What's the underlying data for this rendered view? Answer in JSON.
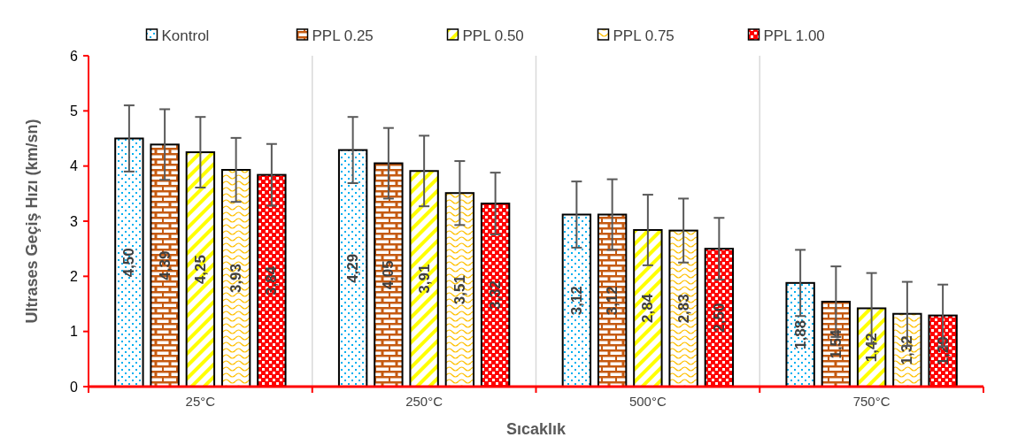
{
  "chart_data": {
    "type": "bar",
    "xlabel": "Sıcaklık",
    "ylabel": "Ultrases Geçiş Hızı (km/sn)",
    "categories": [
      "25°C",
      "250°C",
      "500°C",
      "750°C"
    ],
    "ylim": [
      0,
      6
    ],
    "yticks": [
      0,
      1,
      2,
      3,
      4,
      5,
      6
    ],
    "grid": "x",
    "legend": "top",
    "series": [
      {
        "name": "Kontrol",
        "color": "#00b0f0",
        "values": [
          4.5,
          4.29,
          3.12,
          1.88
        ],
        "errors": [
          0.6,
          0.6,
          0.6,
          0.6
        ],
        "value_labels": [
          "4,50",
          "4,29",
          "3,12",
          "1,88"
        ]
      },
      {
        "name": "PPL 0.25",
        "color": "#c55a11",
        "values": [
          4.39,
          4.05,
          3.12,
          1.54
        ],
        "errors": [
          0.64,
          0.64,
          0.64,
          0.64
        ],
        "value_labels": [
          "4,39",
          "4,05",
          "3,12",
          "1,54"
        ]
      },
      {
        "name": "PPL 0.50",
        "color": "#ffff00",
        "values": [
          4.25,
          3.91,
          2.84,
          1.42
        ],
        "errors": [
          0.64,
          0.64,
          0.64,
          0.64
        ],
        "value_labels": [
          "4,25",
          "3,91",
          "2,84",
          "1,42"
        ]
      },
      {
        "name": "PPL 0.75",
        "color": "#ffc000",
        "values": [
          3.93,
          3.51,
          2.83,
          1.32
        ],
        "errors": [
          0.58,
          0.58,
          0.58,
          0.58
        ],
        "value_labels": [
          "3,93",
          "3,51",
          "2,83",
          "1,32"
        ]
      },
      {
        "name": "PPL 1.00",
        "color": "#ff0000",
        "values": [
          3.84,
          3.32,
          2.5,
          1.29
        ],
        "errors": [
          0.56,
          0.56,
          0.56,
          0.56
        ],
        "value_labels": [
          "3,84",
          "3,32",
          "2,50",
          "1,29"
        ]
      }
    ]
  }
}
